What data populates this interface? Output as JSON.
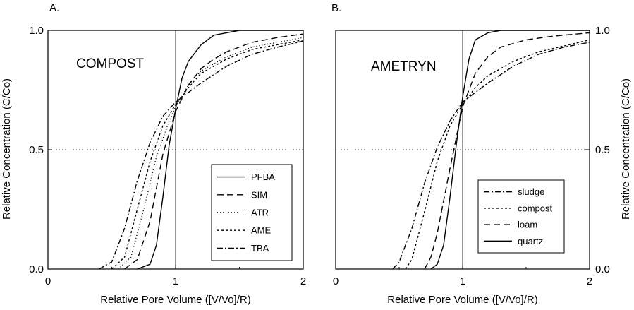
{
  "chart_data": [
    {
      "type": "line",
      "panel_label": "A.",
      "annotation": "COMPOST",
      "xlabel": "Relative Pore Volume ([V/Vo]/R)",
      "ylabel": "Relative Concentration (C/Co)",
      "xlim": [
        0,
        2
      ],
      "ylim": [
        0,
        1
      ],
      "x_ticks": [
        "0",
        "1",
        "2"
      ],
      "y_ticks": [
        "0.0",
        "0.5",
        "1.0"
      ],
      "ref_x": 1,
      "ref_y": 0.5,
      "legend_position": "lower-right",
      "series": [
        {
          "name": "PFBA",
          "dash": "",
          "points": [
            [
              0.7,
              0
            ],
            [
              0.8,
              0.02
            ],
            [
              0.85,
              0.1
            ],
            [
              0.9,
              0.3
            ],
            [
              0.95,
              0.52
            ],
            [
              1.0,
              0.67
            ],
            [
              1.05,
              0.8
            ],
            [
              1.1,
              0.87
            ],
            [
              1.2,
              0.94
            ],
            [
              1.3,
              0.98
            ],
            [
              1.4,
              0.99
            ],
            [
              1.5,
              1.0
            ],
            [
              2.0,
              1.0
            ]
          ]
        },
        {
          "name": "SIM",
          "dash": "9,5",
          "points": [
            [
              0.6,
              0
            ],
            [
              0.7,
              0.04
            ],
            [
              0.8,
              0.2
            ],
            [
              0.9,
              0.48
            ],
            [
              1.0,
              0.66
            ],
            [
              1.1,
              0.77
            ],
            [
              1.2,
              0.84
            ],
            [
              1.3,
              0.88
            ],
            [
              1.4,
              0.91
            ],
            [
              1.6,
              0.95
            ],
            [
              1.8,
              0.97
            ],
            [
              2.0,
              0.985
            ]
          ]
        },
        {
          "name": "ATR",
          "dash": "1,3",
          "points": [
            [
              0.55,
              0
            ],
            [
              0.65,
              0.05
            ],
            [
              0.75,
              0.25
            ],
            [
              0.85,
              0.47
            ],
            [
              0.95,
              0.62
            ],
            [
              1.0,
              0.68
            ],
            [
              1.1,
              0.77
            ],
            [
              1.2,
              0.83
            ],
            [
              1.4,
              0.89
            ],
            [
              1.6,
              0.93
            ],
            [
              2.0,
              0.97
            ]
          ]
        },
        {
          "name": "AME",
          "dash": "3,3",
          "points": [
            [
              0.5,
              0
            ],
            [
              0.6,
              0.05
            ],
            [
              0.7,
              0.25
            ],
            [
              0.8,
              0.45
            ],
            [
              0.9,
              0.6
            ],
            [
              1.0,
              0.69
            ],
            [
              1.1,
              0.76
            ],
            [
              1.2,
              0.82
            ],
            [
              1.4,
              0.88
            ],
            [
              1.6,
              0.92
            ],
            [
              2.0,
              0.96
            ]
          ]
        },
        {
          "name": "TBA",
          "dash": "8,3,2,3",
          "points": [
            [
              0.4,
              0
            ],
            [
              0.5,
              0.03
            ],
            [
              0.6,
              0.17
            ],
            [
              0.7,
              0.37
            ],
            [
              0.8,
              0.53
            ],
            [
              0.9,
              0.64
            ],
            [
              1.0,
              0.7
            ],
            [
              1.1,
              0.74
            ],
            [
              1.2,
              0.78
            ],
            [
              1.4,
              0.85
            ],
            [
              1.6,
              0.9
            ],
            [
              1.8,
              0.93
            ],
            [
              2.0,
              0.955
            ]
          ]
        }
      ]
    },
    {
      "type": "line",
      "panel_label": "B.",
      "annotation": "AMETRYN",
      "xlabel": "Relative Pore Volume ([V/Vo]/R)",
      "ylabel": "Relative Concentration (C/Co)",
      "xlim": [
        0,
        2
      ],
      "ylim": [
        0,
        1
      ],
      "x_ticks": [
        "0",
        "1",
        "2"
      ],
      "y_ticks": [
        "0.0",
        "0.5",
        "1.0"
      ],
      "ref_x": 1,
      "ref_y": 0.5,
      "legend_position": "lower-right",
      "series": [
        {
          "name": "sludge",
          "dash": "8,3,2,3",
          "points": [
            [
              0.45,
              0
            ],
            [
              0.5,
              0.03
            ],
            [
              0.6,
              0.17
            ],
            [
              0.7,
              0.36
            ],
            [
              0.8,
              0.51
            ],
            [
              0.9,
              0.62
            ],
            [
              1.0,
              0.7
            ],
            [
              1.1,
              0.74
            ],
            [
              1.2,
              0.78
            ],
            [
              1.4,
              0.85
            ],
            [
              1.6,
              0.9
            ],
            [
              1.8,
              0.93
            ],
            [
              2.0,
              0.95
            ]
          ]
        },
        {
          "name": "compost",
          "dash": "3,3",
          "points": [
            [
              0.55,
              0
            ],
            [
              0.6,
              0.04
            ],
            [
              0.7,
              0.24
            ],
            [
              0.8,
              0.45
            ],
            [
              0.9,
              0.6
            ],
            [
              1.0,
              0.69
            ],
            [
              1.1,
              0.76
            ],
            [
              1.2,
              0.81
            ],
            [
              1.4,
              0.87
            ],
            [
              1.6,
              0.91
            ],
            [
              2.0,
              0.96
            ]
          ]
        },
        {
          "name": "loam",
          "dash": "9,5",
          "points": [
            [
              0.7,
              0
            ],
            [
              0.75,
              0.05
            ],
            [
              0.8,
              0.15
            ],
            [
              0.9,
              0.42
            ],
            [
              1.0,
              0.68
            ],
            [
              1.1,
              0.82
            ],
            [
              1.2,
              0.89
            ],
            [
              1.3,
              0.93
            ],
            [
              1.5,
              0.96
            ],
            [
              1.7,
              0.975
            ],
            [
              2.0,
              0.99
            ]
          ]
        },
        {
          "name": "quartz",
          "dash": "",
          "points": [
            [
              0.75,
              0
            ],
            [
              0.8,
              0.02
            ],
            [
              0.85,
              0.1
            ],
            [
              0.9,
              0.3
            ],
            [
              0.95,
              0.52
            ],
            [
              1.0,
              0.72
            ],
            [
              1.05,
              0.88
            ],
            [
              1.1,
              0.96
            ],
            [
              1.2,
              0.99
            ],
            [
              1.3,
              1.0
            ],
            [
              2.0,
              1.0
            ]
          ]
        }
      ]
    }
  ]
}
